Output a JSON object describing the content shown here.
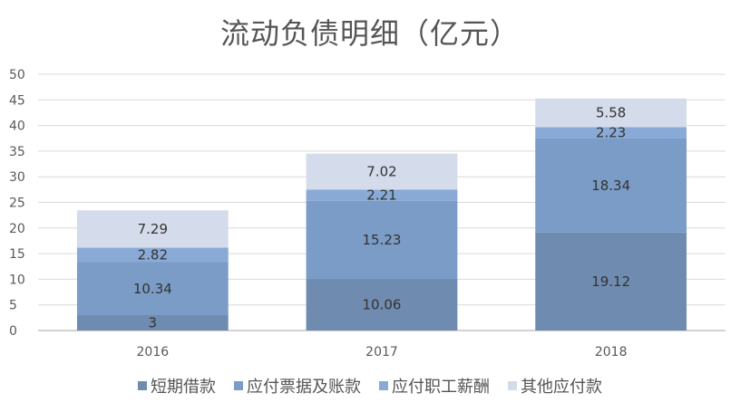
{
  "chart_data": {
    "type": "bar",
    "stacked": true,
    "title": "流动负债明细（亿元）",
    "categories": [
      "2016",
      "2017",
      "2018"
    ],
    "series": [
      {
        "name": "短期借款",
        "values": [
          3,
          10.06,
          19.12
        ],
        "color": "#6f8bb0"
      },
      {
        "name": "应付票据及账款",
        "values": [
          10.34,
          15.23,
          18.34
        ],
        "color": "#7a9cc6"
      },
      {
        "name": "应付职工薪酬",
        "values": [
          2.82,
          2.21,
          2.23
        ],
        "color": "#89aad6"
      },
      {
        "name": "其他应付款",
        "values": [
          7.29,
          7.02,
          5.58
        ],
        "color": "#d4dbea"
      }
    ],
    "ylim": [
      0,
      50
    ],
    "yticks": [
      0,
      5,
      10,
      15,
      20,
      25,
      30,
      35,
      40,
      45,
      50
    ],
    "grid": true,
    "legend_position": "bottom"
  }
}
